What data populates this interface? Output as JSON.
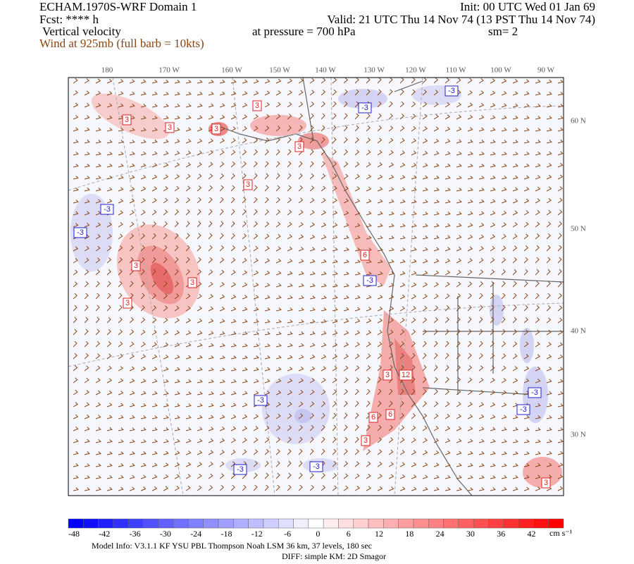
{
  "header": {
    "model": "ECHAM.1970S-WRF Domain 1",
    "fcst": "Fcst: **** h",
    "field": "Vertical velocity",
    "wind": "Wind at 925mb (full barb = 10kts)",
    "init": "Init: 00 UTC Wed 01 Jan 69",
    "valid": "Valid: 21 UTC Thu 14 Nov 74 (13 PST Thu 14 Nov 74)",
    "pressure": "at pressure =  700 hPa",
    "smooth": "sm= 2"
  },
  "map": {
    "lon_labels": [
      "180",
      "170 W",
      "160 W",
      "150 W",
      "140 W",
      "130 W",
      "120 W",
      "110 W",
      "100 W",
      "90 W"
    ],
    "lat_labels": [
      "60 N",
      "50 N",
      "40 N",
      "30 N"
    ],
    "contour_labels": [
      "3",
      "3",
      "3",
      "3",
      "-3",
      "-3",
      "3",
      "3",
      "-3",
      "-3",
      "3",
      "3",
      "3",
      "6",
      "-3",
      "3",
      "12",
      "-3",
      "6",
      "6",
      "3",
      "-3",
      "-3",
      "-3",
      "-3",
      "3"
    ]
  },
  "colorbar": {
    "labels": [
      "-48",
      "-42",
      "-36",
      "-30",
      "-24",
      "-18",
      "-12",
      "-6",
      "0",
      "6",
      "12",
      "18",
      "24",
      "30",
      "36",
      "42"
    ],
    "unit": "cm s⁻¹"
  },
  "footer": {
    "line1": "Model Info: V3.1.1    KF    YSU PBL   Thompson    Noah LSM  36 km,   37 levels,  180 sec",
    "line2": "DIFF: simple KM: 2D Smagor"
  }
}
